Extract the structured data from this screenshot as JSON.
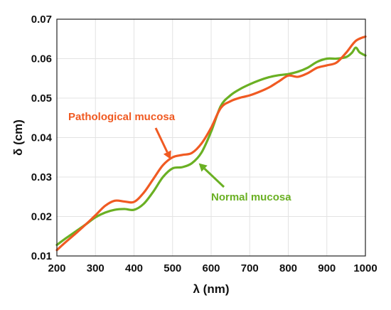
{
  "chart_data": {
    "type": "line",
    "title": "",
    "xlabel": "λ (nm)",
    "ylabel": "δ (cm)",
    "xlim": [
      200,
      1000
    ],
    "ylim": [
      0.01,
      0.07
    ],
    "xticks": [
      200,
      300,
      400,
      500,
      600,
      700,
      800,
      900,
      1000
    ],
    "yticks": [
      0.01,
      0.02,
      0.03,
      0.04,
      0.05,
      0.06,
      0.07
    ],
    "xtick_labels": [
      "200",
      "300",
      "400",
      "500",
      "600",
      "700",
      "800",
      "900",
      "1000"
    ],
    "ytick_labels": [
      "0.01",
      "0.02",
      "0.03",
      "0.04",
      "0.05",
      "0.06",
      "0.07"
    ],
    "grid": true,
    "legend": "none",
    "series": [
      {
        "name": "Pathological mucosa",
        "color": "#f05a22",
        "x": [
          200,
          225,
          250,
          275,
          300,
          325,
          350,
          375,
          400,
          425,
          450,
          475,
          500,
          525,
          550,
          575,
          600,
          625,
          650,
          675,
          700,
          725,
          750,
          775,
          800,
          825,
          850,
          875,
          900,
          925,
          950,
          975,
          1000
        ],
        "y": [
          0.0115,
          0.0137,
          0.0158,
          0.018,
          0.0203,
          0.0227,
          0.024,
          0.0238,
          0.0237,
          0.026,
          0.0295,
          0.033,
          0.035,
          0.0356,
          0.0361,
          0.0385,
          0.0425,
          0.0475,
          0.0492,
          0.0501,
          0.0507,
          0.0516,
          0.0527,
          0.0542,
          0.0557,
          0.0554,
          0.0563,
          0.0577,
          0.0583,
          0.059,
          0.0615,
          0.0645,
          0.0656
        ]
      },
      {
        "name": "Normal mucosa",
        "color": "#6ab023",
        "x": [
          200,
          225,
          250,
          275,
          300,
          325,
          350,
          375,
          400,
          425,
          450,
          475,
          500,
          525,
          550,
          575,
          600,
          625,
          650,
          675,
          700,
          725,
          750,
          775,
          800,
          825,
          850,
          875,
          900,
          925,
          950,
          965,
          975,
          985,
          1000
        ],
        "y": [
          0.0128,
          0.0146,
          0.0163,
          0.018,
          0.0198,
          0.021,
          0.0217,
          0.0219,
          0.0217,
          0.0232,
          0.0263,
          0.03,
          0.0322,
          0.0325,
          0.0335,
          0.0362,
          0.0415,
          0.048,
          0.0507,
          0.0523,
          0.0535,
          0.0545,
          0.0553,
          0.0558,
          0.0561,
          0.0567,
          0.0577,
          0.0592,
          0.06,
          0.06,
          0.0604,
          0.0615,
          0.0628,
          0.0616,
          0.0608
        ]
      }
    ],
    "annotations": [
      {
        "text": "Pathological mucosa",
        "color": "#f05a22",
        "points_to_x": 495,
        "points_to_y": 0.0345
      },
      {
        "text": "Normal mucosa",
        "color": "#6ab023",
        "points_to_x": 568,
        "points_to_y": 0.0335
      }
    ]
  }
}
